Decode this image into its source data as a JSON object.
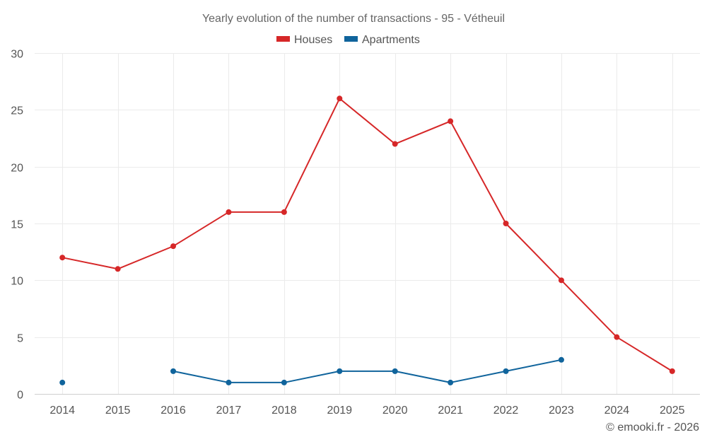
{
  "chart_data": {
    "type": "line",
    "title": "Yearly evolution of the number of transactions - 95 - Vétheuil",
    "xlabel": "",
    "ylabel": "",
    "categories": [
      "2014",
      "2015",
      "2016",
      "2017",
      "2018",
      "2019",
      "2020",
      "2021",
      "2022",
      "2023",
      "2024",
      "2025"
    ],
    "ylim": [
      0,
      30
    ],
    "yticks": [
      0,
      5,
      10,
      15,
      20,
      25,
      30
    ],
    "grid": true,
    "legend_position": "top-center",
    "series": [
      {
        "name": "Houses",
        "color": "#d62728",
        "values": [
          12,
          11,
          13,
          16,
          16,
          26,
          22,
          24,
          15,
          10,
          5,
          2
        ]
      },
      {
        "name": "Apartments",
        "color": "#10649c",
        "values": [
          1,
          null,
          2,
          1,
          1,
          2,
          2,
          1,
          2,
          3,
          null,
          null
        ]
      }
    ]
  },
  "credit": "© emooki.fr - 2026"
}
